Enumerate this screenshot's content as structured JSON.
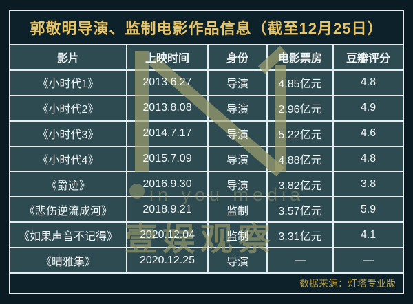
{
  "title": "郭敬明导演、监制电影作品信息（截至12月25日）",
  "table": {
    "columns": [
      "影片",
      "上映时间",
      "身份",
      "电影票房",
      "豆瓣评分"
    ],
    "rows": [
      [
        "《小时代1》",
        "2013.6.27",
        "导演",
        "4.85亿元",
        "4.8"
      ],
      [
        "《小时代2》",
        "2013.8.08",
        "导演",
        "2.96亿元",
        "4.9"
      ],
      [
        "《小时代3》",
        "2014.7.17",
        "导演",
        "5.22亿元",
        "4.6"
      ],
      [
        "《小时代4》",
        "2015.7.09",
        "导演",
        "4.88亿元",
        "4.8"
      ],
      [
        "《爵迹》",
        "2016.9.30",
        "导演",
        "3.82亿元",
        "3.8"
      ],
      [
        "《悲伤逆流成河》",
        "2018.9.21",
        "监制",
        "3.57亿元",
        "5.9"
      ],
      [
        "《如果声音不记得》",
        "2020.12.04",
        "监制",
        "3.31亿元",
        "4.1"
      ],
      [
        "《晴雅集》",
        "2020.12.25",
        "导演",
        "—",
        "—"
      ]
    ]
  },
  "footer": {
    "source": "数据来源：灯塔专业版"
  },
  "watermark": {
    "brand_text": "in you media",
    "brand_name": "壹娱观察"
  },
  "colors": {
    "page_background": "#0a1b23",
    "panel_background": "#0d212b",
    "cell_background": "#2e4b52",
    "border": "#e7edef",
    "title_text": "#e7c568",
    "cell_text": "#f1f5f5",
    "footer_text": "#b9a14f",
    "watermark": "#a3a36e"
  },
  "chart_data": {
    "type": "table",
    "title": "郭敬明导演、监制电影作品信息（截至12月25日）",
    "columns": [
      "影片",
      "上映时间",
      "身份",
      "电影票房",
      "豆瓣评分"
    ],
    "rows": [
      {
        "影片": "《小时代1》",
        "上映时间": "2013.6.27",
        "身份": "导演",
        "电影票房": "4.85亿元",
        "豆瓣评分": "4.8"
      },
      {
        "影片": "《小时代2》",
        "上映时间": "2013.8.08",
        "身份": "导演",
        "电影票房": "2.96亿元",
        "豆瓣评分": "4.9"
      },
      {
        "影片": "《小时代3》",
        "上映时间": "2014.7.17",
        "身份": "导演",
        "电影票房": "5.22亿元",
        "豆瓣评分": "4.6"
      },
      {
        "影片": "《小时代4》",
        "上映时间": "2015.7.09",
        "身份": "导演",
        "电影票房": "4.88亿元",
        "豆瓣评分": "4.8"
      },
      {
        "影片": "《爵迹》",
        "上映时间": "2016.9.30",
        "身份": "导演",
        "电影票房": "3.82亿元",
        "豆瓣评分": "3.8"
      },
      {
        "影片": "《悲伤逆流成河》",
        "上映时间": "2018.9.21",
        "身份": "监制",
        "电影票房": "3.57亿元",
        "豆瓣评分": "5.9"
      },
      {
        "影片": "《如果声音不记得》",
        "上映时间": "2020.12.04",
        "身份": "监制",
        "电影票房": "3.31亿元",
        "豆瓣评分": "4.1"
      },
      {
        "影片": "《晴雅集》",
        "上映时间": "2020.12.25",
        "身份": "导演",
        "电影票房": "—",
        "豆瓣评分": "—"
      }
    ],
    "source": "数据来源：灯塔专业版"
  }
}
